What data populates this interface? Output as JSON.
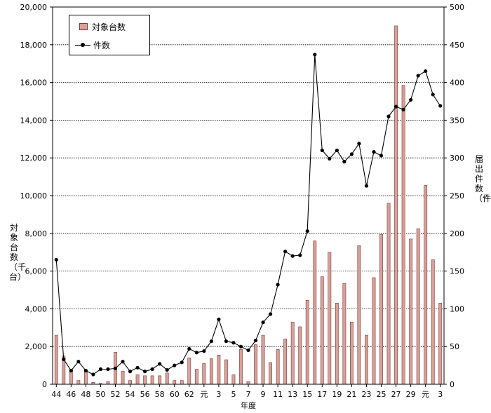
{
  "chart_data": {
    "type": "bar",
    "xlabel": "年度",
    "ylabel_left": "対象台数（千台）",
    "ylabel_right": "届出件数（件）",
    "ylim_left": [
      0,
      20000
    ],
    "ylim_right": [
      0,
      500
    ],
    "yticks_left": [
      "0",
      "2,000",
      "4,000",
      "6,000",
      "8,000",
      "10,000",
      "12,000",
      "14,000",
      "16,000",
      "18,000",
      "20,000"
    ],
    "yticks_right": [
      "0",
      "50",
      "100",
      "150",
      "200",
      "250",
      "300",
      "350",
      "400",
      "450",
      "500"
    ],
    "categories": [
      "44",
      "45",
      "46",
      "47",
      "48",
      "49",
      "50",
      "51",
      "52",
      "53",
      "54",
      "55",
      "56",
      "57",
      "58",
      "59",
      "60",
      "61",
      "62",
      "63",
      "元",
      "2",
      "3",
      "4",
      "5",
      "6",
      "7",
      "8",
      "9",
      "10",
      "11",
      "12",
      "13",
      "14",
      "15",
      "16",
      "17",
      "18",
      "19",
      "20",
      "21",
      "22",
      "23",
      "24",
      "25",
      "26",
      "27",
      "28",
      "29",
      "30",
      "元",
      "2",
      "3"
    ],
    "x_tick_labels": [
      "44",
      "46",
      "48",
      "50",
      "52",
      "54",
      "56",
      "58",
      "60",
      "62",
      "元",
      "3",
      "5",
      "7",
      "9",
      "11",
      "13",
      "15",
      "17",
      "19",
      "21",
      "23",
      "25",
      "27",
      "29",
      "元",
      "3"
    ],
    "x_tick_indices": [
      0,
      2,
      4,
      6,
      8,
      10,
      12,
      14,
      16,
      18,
      20,
      22,
      24,
      26,
      28,
      30,
      32,
      34,
      36,
      38,
      40,
      42,
      44,
      46,
      48,
      50,
      52
    ],
    "grid": true,
    "legend_position": "top-left",
    "series": [
      {
        "name": "対象台数",
        "type": "bar",
        "axis": "left",
        "color": "#d9a09a",
        "values": [
          2600,
          1500,
          700,
          200,
          700,
          100,
          50,
          150,
          1700,
          700,
          200,
          500,
          450,
          450,
          450,
          600,
          200,
          200,
          1400,
          800,
          1100,
          1350,
          1550,
          1300,
          500,
          1850,
          150,
          2100,
          2600,
          1150,
          1850,
          2400,
          3300,
          3050,
          4450,
          7600,
          5700,
          7000,
          4300,
          5350,
          3300,
          7350,
          2600,
          5650,
          7950,
          9600,
          19000,
          15850,
          7700,
          8250,
          10550,
          6600,
          4300
        ]
      },
      {
        "name": "件数",
        "type": "line",
        "axis": "right",
        "color": "#000000",
        "values": [
          165,
          33,
          18,
          30,
          18,
          13,
          20,
          20,
          21,
          30,
          17,
          22,
          17,
          20,
          27,
          19,
          25,
          29,
          47,
          42,
          44,
          57,
          86,
          57,
          55,
          50,
          45,
          58,
          82,
          93,
          132,
          176,
          170,
          171,
          203,
          437,
          310,
          299,
          310,
          295,
          305,
          319,
          263,
          308,
          303,
          355,
          368,
          364,
          377,
          409,
          415,
          384,
          369
        ]
      }
    ]
  }
}
